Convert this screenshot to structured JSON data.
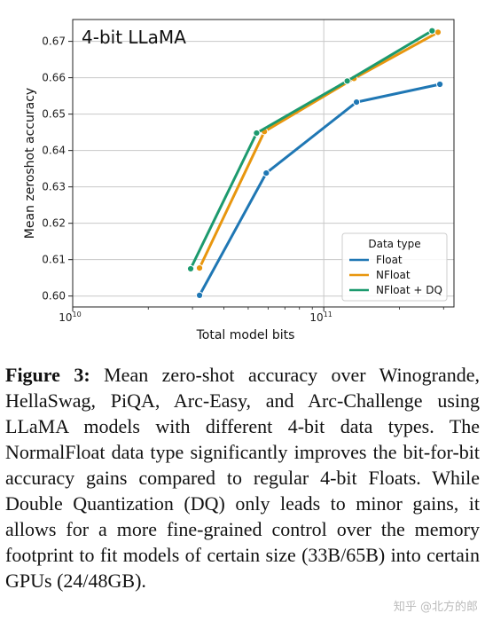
{
  "chart_data": {
    "type": "line",
    "title": "4-bit LLaMA",
    "xlabel": "Total model bits",
    "ylabel": "Mean zeroshot accuracy",
    "xscale": "log",
    "xlim": [
      10000000000.0,
      330000000000.0
    ],
    "ylim": [
      0.597,
      0.676
    ],
    "xticks": [
      {
        "value": 10000000000.0,
        "label": "10",
        "exp": "10"
      },
      {
        "value": 100000000000.0,
        "label": "10",
        "exp": "11"
      }
    ],
    "yticks": [
      0.6,
      0.61,
      0.62,
      0.63,
      0.64,
      0.65,
      0.66,
      0.67
    ],
    "ytick_labels": [
      "0.60",
      "0.61",
      "0.62",
      "0.63",
      "0.64",
      "0.65",
      "0.66",
      "0.67"
    ],
    "grid": "major ticks",
    "legend": {
      "title": "Data type",
      "placement": "lower right"
    },
    "series": [
      {
        "name": "Float",
        "color": "#1f77b4",
        "x": [
          32000000000.0,
          59000000000.0,
          135000000000.0,
          290000000000.0
        ],
        "y": [
          0.6002,
          0.6338,
          0.6533,
          0.6582
        ]
      },
      {
        "name": "NFloat",
        "color": "#e8960e",
        "x": [
          32000000000.0,
          58000000000.0,
          132000000000.0,
          285000000000.0
        ],
        "y": [
          0.6077,
          0.6452,
          0.6598,
          0.6725
        ]
      },
      {
        "name": "NFloat + DQ",
        "color": "#1c9a6e",
        "x": [
          29500000000.0,
          54000000000.0,
          124000000000.0,
          270000000000.0
        ],
        "y": [
          0.6075,
          0.6448,
          0.6591,
          0.6729
        ]
      }
    ]
  },
  "caption": {
    "label": "Figure 3:",
    "text": "Mean zero-shot accuracy over Winogrande, HellaSwag, PiQA, Arc-Easy, and Arc-Challenge using LLaMA models with different 4-bit data types. The NormalFloat data type significantly improves the bit-for-bit accuracy gains compared to regular 4-bit Floats. While Double Quantization (DQ) only leads to minor gains, it allows for a more fine-grained control over the memory footprint to fit models of certain size (33B/65B) into certain GPUs (24/48GB)."
  },
  "watermark": "知乎 @北方的郎"
}
